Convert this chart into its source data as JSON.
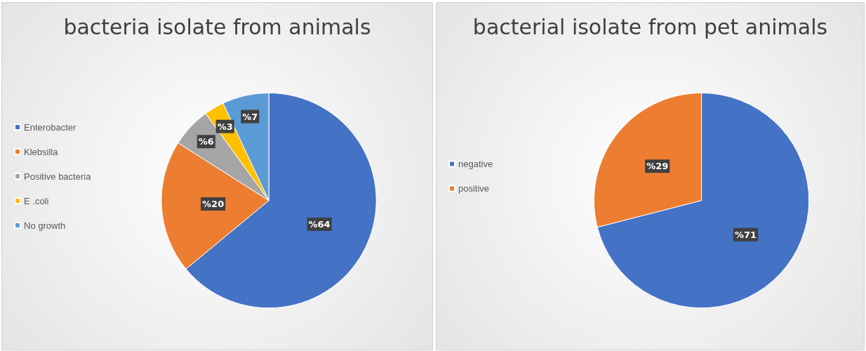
{
  "chart_data": [
    {
      "type": "pie",
      "title": "bacteria isolate from animals",
      "categories": [
        "Enterobacter",
        "Klebsilla",
        "Positive bacteria",
        "E .coli",
        "No growth"
      ],
      "values": [
        64,
        20,
        6,
        3,
        7
      ],
      "colors": [
        "#4472c4",
        "#ed7d31",
        "#a5a5a5",
        "#ffc000",
        "#5b9bd5"
      ],
      "value_labels": [
        "%64",
        "%20",
        "%6",
        "%3",
        "%7"
      ],
      "legend": "left"
    },
    {
      "type": "pie",
      "title": "bacterial isolate from pet animals",
      "categories": [
        "negative",
        "positive"
      ],
      "values": [
        71,
        29
      ],
      "colors": [
        "#4472c4",
        "#ed7d31"
      ],
      "value_labels": [
        "%71",
        "%29"
      ],
      "legend": "left"
    }
  ]
}
